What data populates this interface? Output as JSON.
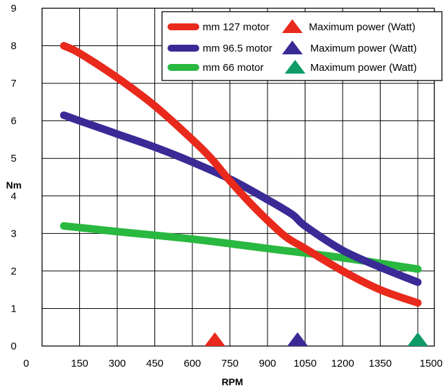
{
  "chart_data": {
    "type": "line",
    "title": "",
    "xlabel": "RPM",
    "ylabel": "Nm",
    "xlim": [
      0,
      1500
    ],
    "ylim": [
      0,
      9
    ],
    "x_ticks": [
      "0",
      "150",
      "300",
      "450",
      "600",
      "750",
      "900",
      "1050",
      "1200",
      "1350",
      "1500"
    ],
    "y_ticks": [
      "0",
      "1",
      "2",
      "3",
      "4",
      "5",
      "6",
      "7",
      "8",
      "9"
    ],
    "grid": true,
    "legend_position": "top-right",
    "series": [
      {
        "name": "mm 127 motor",
        "color": "#e8291c",
        "x": [
          87,
          150,
          300,
          450,
          600,
          675,
          750,
          825,
          900,
          975,
          1050,
          1200,
          1350,
          1500
        ],
        "y": [
          8.0,
          7.8,
          7.15,
          6.4,
          5.5,
          5.0,
          4.4,
          3.85,
          3.35,
          2.9,
          2.6,
          2.0,
          1.5,
          1.15
        ]
      },
      {
        "name": "mm 96.5 motor",
        "color": "#3a2a96",
        "x": [
          87,
          150,
          300,
          450,
          600,
          750,
          900,
          1000,
          1050,
          1200,
          1350,
          1500
        ],
        "y": [
          6.15,
          6.0,
          5.65,
          5.3,
          4.9,
          4.45,
          3.9,
          3.5,
          3.2,
          2.55,
          2.1,
          1.7
        ]
      },
      {
        "name": "mm 66 motor",
        "color": "#29b840",
        "x": [
          87,
          300,
          600,
          900,
          1200,
          1500
        ],
        "y": [
          3.2,
          3.05,
          2.85,
          2.6,
          2.35,
          2.05
        ]
      }
    ],
    "markers": [
      {
        "label": "Maximum power (Watt)",
        "series": "mm 127 motor",
        "x": 690,
        "y": 0,
        "color": "#e8291c"
      },
      {
        "label": "Maximum power (Watt)",
        "series": "mm 96.5 motor",
        "x": 1020,
        "y": 0,
        "color": "#3a2a96"
      },
      {
        "label": "Maximum power (Watt)",
        "series": "mm 66 motor",
        "x": 1500,
        "y": 0,
        "color": "#0e9b68"
      }
    ]
  }
}
